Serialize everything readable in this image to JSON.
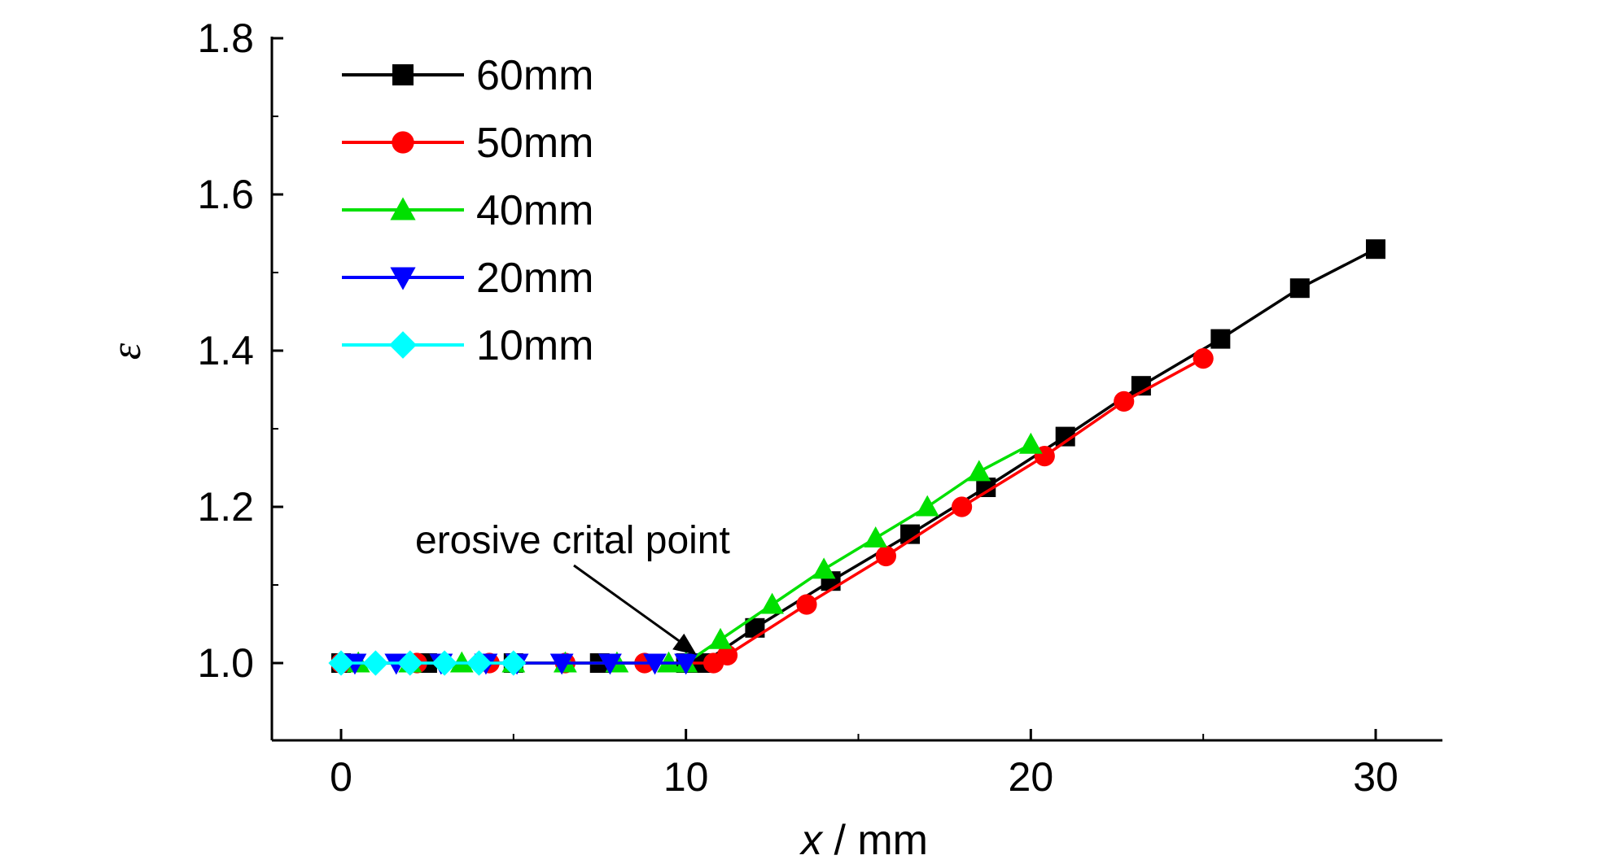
{
  "chart_data": {
    "type": "line",
    "title": "",
    "xlabel_var": "x",
    "xlabel_unit": " / mm",
    "ylabel": "ε",
    "xlim": [
      -2,
      32
    ],
    "ylim": [
      0.9,
      1.8
    ],
    "xticks": [
      0,
      10,
      20,
      30
    ],
    "yticks": [
      1.0,
      1.2,
      1.4,
      1.6,
      1.8
    ],
    "xtick_labels": [
      "0",
      "10",
      "20",
      "30"
    ],
    "ytick_labels": [
      "1.0",
      "1.2",
      "1.4",
      "1.6",
      "1.8"
    ],
    "legend_position": "top-left",
    "series": [
      {
        "name": "60mm",
        "color": "#000000",
        "marker": "square",
        "x": [
          0,
          2.5,
          5,
          7.5,
          10,
          10.5,
          12,
          14.2,
          16.5,
          18.7,
          21,
          23.2,
          25.5,
          27.8,
          30
        ],
        "y": [
          1.0,
          1.0,
          1.0,
          1.0,
          1.0,
          1.0,
          1.045,
          1.105,
          1.165,
          1.225,
          1.29,
          1.355,
          1.415,
          1.48,
          1.53
        ]
      },
      {
        "name": "50mm",
        "color": "#ff0000",
        "marker": "circle",
        "x": [
          0,
          2.2,
          4.3,
          6.5,
          8.8,
          10.8,
          11.2,
          13.5,
          15.8,
          18,
          20.4,
          22.7,
          25
        ],
        "y": [
          1.0,
          1.0,
          1.0,
          1.0,
          1.0,
          1.0,
          1.01,
          1.075,
          1.137,
          1.2,
          1.265,
          1.335,
          1.39
        ]
      },
      {
        "name": "40mm",
        "color": "#00e000",
        "marker": "triangle-up",
        "x": [
          0.5,
          2,
          3.5,
          5,
          6.5,
          8,
          9.5,
          10,
          11,
          12.5,
          14,
          15.5,
          17,
          18.5,
          20
        ],
        "y": [
          1.0,
          1.0,
          1.0,
          1.0,
          1.0,
          1.0,
          1.0,
          1.0,
          1.03,
          1.075,
          1.12,
          1.16,
          1.2,
          1.245,
          1.28
        ]
      },
      {
        "name": "20mm",
        "color": "#0000ff",
        "marker": "triangle-down",
        "x": [
          0.4,
          1.6,
          2.9,
          4.2,
          5.1,
          6.4,
          7.8,
          9.1,
          10
        ],
        "y": [
          1.0,
          1.0,
          1.0,
          1.0,
          1.0,
          1.0,
          1.0,
          1.0,
          1.0
        ]
      },
      {
        "name": "10mm",
        "color": "#00ffff",
        "marker": "diamond",
        "x": [
          0,
          1,
          2,
          3,
          4,
          5
        ],
        "y": [
          1.0,
          1.0,
          1.0,
          1.0,
          1.0,
          1.0
        ]
      }
    ],
    "annotation": {
      "text": "erosive crital point",
      "target": [
        10.5,
        1.0
      ]
    }
  }
}
